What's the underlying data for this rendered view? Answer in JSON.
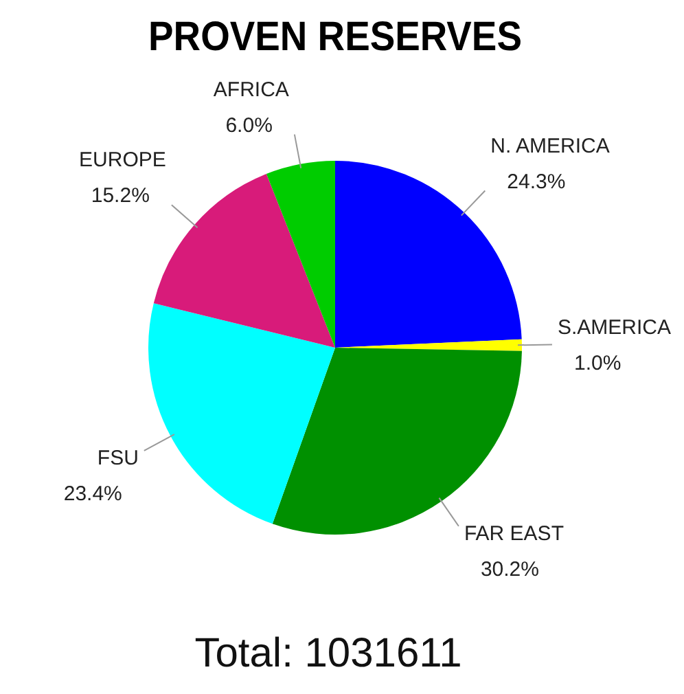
{
  "chart_data": {
    "type": "pie",
    "title": "PROVEN RESERVES",
    "categories": [
      "N. AMERICA",
      "S.AMERICA",
      "FAR EAST",
      "FSU",
      "EUROPE",
      "AFRICA"
    ],
    "values": [
      24.3,
      1.0,
      30.2,
      23.4,
      15.2,
      6.0
    ],
    "value_labels": [
      "24.3%",
      "1.0%",
      "30.2%",
      "23.4%",
      "15.2%",
      "6.0%"
    ],
    "colors": [
      "#0000ff",
      "#ffff00",
      "#009000",
      "#00ffff",
      "#d81b7a",
      "#00cc00"
    ],
    "annotations": [
      "Total: 1031611"
    ],
    "legend": false
  }
}
